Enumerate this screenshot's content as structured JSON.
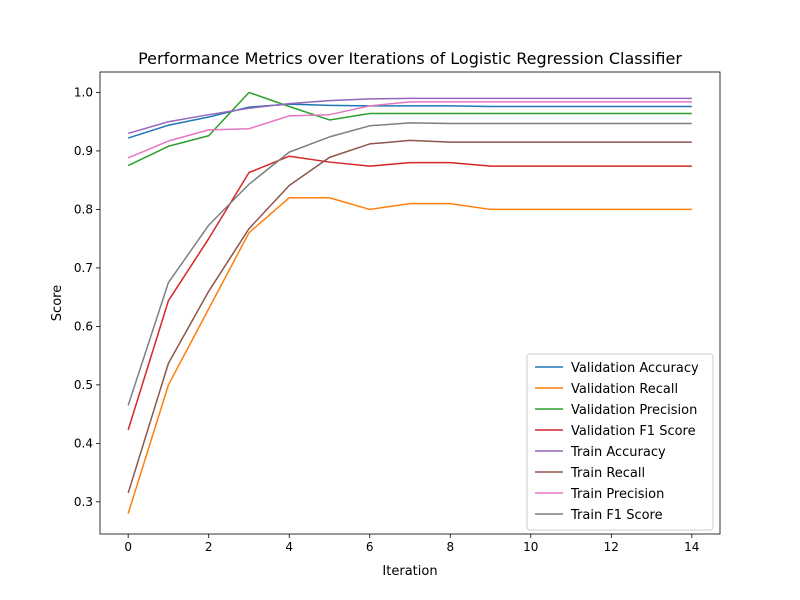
{
  "chart_data": {
    "type": "line",
    "title": "Performance Metrics over Iterations of Logistic Regression Classifier",
    "xlabel": "Iteration",
    "ylabel": "Score",
    "xlim": [
      -0.7,
      14.7
    ],
    "ylim": [
      0.245,
      1.035
    ],
    "xticks": [
      0,
      2,
      4,
      6,
      8,
      10,
      12,
      14
    ],
    "yticks": [
      0.3,
      0.4,
      0.5,
      0.6,
      0.7,
      0.8,
      0.9,
      1.0
    ],
    "ytick_labels": [
      "0.3",
      "0.4",
      "0.5",
      "0.6",
      "0.7",
      "0.8",
      "0.9",
      "1.0"
    ],
    "grid": false,
    "legend_position": "lower-right",
    "x": [
      0,
      1,
      2,
      3,
      4,
      5,
      6,
      7,
      8,
      9,
      10,
      11,
      12,
      13,
      14
    ],
    "series": [
      {
        "name": "Validation Accuracy",
        "color": "#1f77b4",
        "values": [
          0.922,
          0.944,
          0.958,
          0.975,
          0.98,
          0.978,
          0.977,
          0.977,
          0.977,
          0.976,
          0.976,
          0.976,
          0.976,
          0.976,
          0.976
        ]
      },
      {
        "name": "Validation Recall",
        "color": "#ff7f0e",
        "values": [
          0.28,
          0.5,
          0.63,
          0.76,
          0.82,
          0.82,
          0.8,
          0.81,
          0.81,
          0.8,
          0.8,
          0.8,
          0.8,
          0.8,
          0.8
        ]
      },
      {
        "name": "Validation Precision",
        "color": "#2ca02c",
        "values": [
          0.875,
          0.908,
          0.926,
          1.0,
          0.976,
          0.953,
          0.964,
          0.964,
          0.964,
          0.964,
          0.964,
          0.964,
          0.964,
          0.964,
          0.964
        ]
      },
      {
        "name": "Validation F1 Score",
        "color": "#d62728",
        "values": [
          0.423,
          0.644,
          0.75,
          0.863,
          0.891,
          0.881,
          0.874,
          0.88,
          0.88,
          0.874,
          0.874,
          0.874,
          0.874,
          0.874,
          0.874
        ]
      },
      {
        "name": "Train Accuracy",
        "color": "#9467bd",
        "values": [
          0.93,
          0.95,
          0.962,
          0.973,
          0.981,
          0.986,
          0.989,
          0.99,
          0.99,
          0.99,
          0.99,
          0.99,
          0.99,
          0.99,
          0.99
        ]
      },
      {
        "name": "Train Recall",
        "color": "#8c564b",
        "values": [
          0.315,
          0.537,
          0.66,
          0.767,
          0.841,
          0.889,
          0.912,
          0.918,
          0.915,
          0.915,
          0.915,
          0.915,
          0.915,
          0.915,
          0.915
        ]
      },
      {
        "name": "Train Precision",
        "color": "#e377c2",
        "values": [
          0.888,
          0.917,
          0.936,
          0.938,
          0.96,
          0.962,
          0.977,
          0.984,
          0.984,
          0.984,
          0.984,
          0.984,
          0.984,
          0.984,
          0.984
        ]
      },
      {
        "name": "Train F1 Score",
        "color": "#7f7f7f",
        "values": [
          0.465,
          0.675,
          0.773,
          0.843,
          0.898,
          0.924,
          0.943,
          0.948,
          0.947,
          0.947,
          0.947,
          0.947,
          0.947,
          0.947,
          0.947
        ]
      }
    ]
  }
}
